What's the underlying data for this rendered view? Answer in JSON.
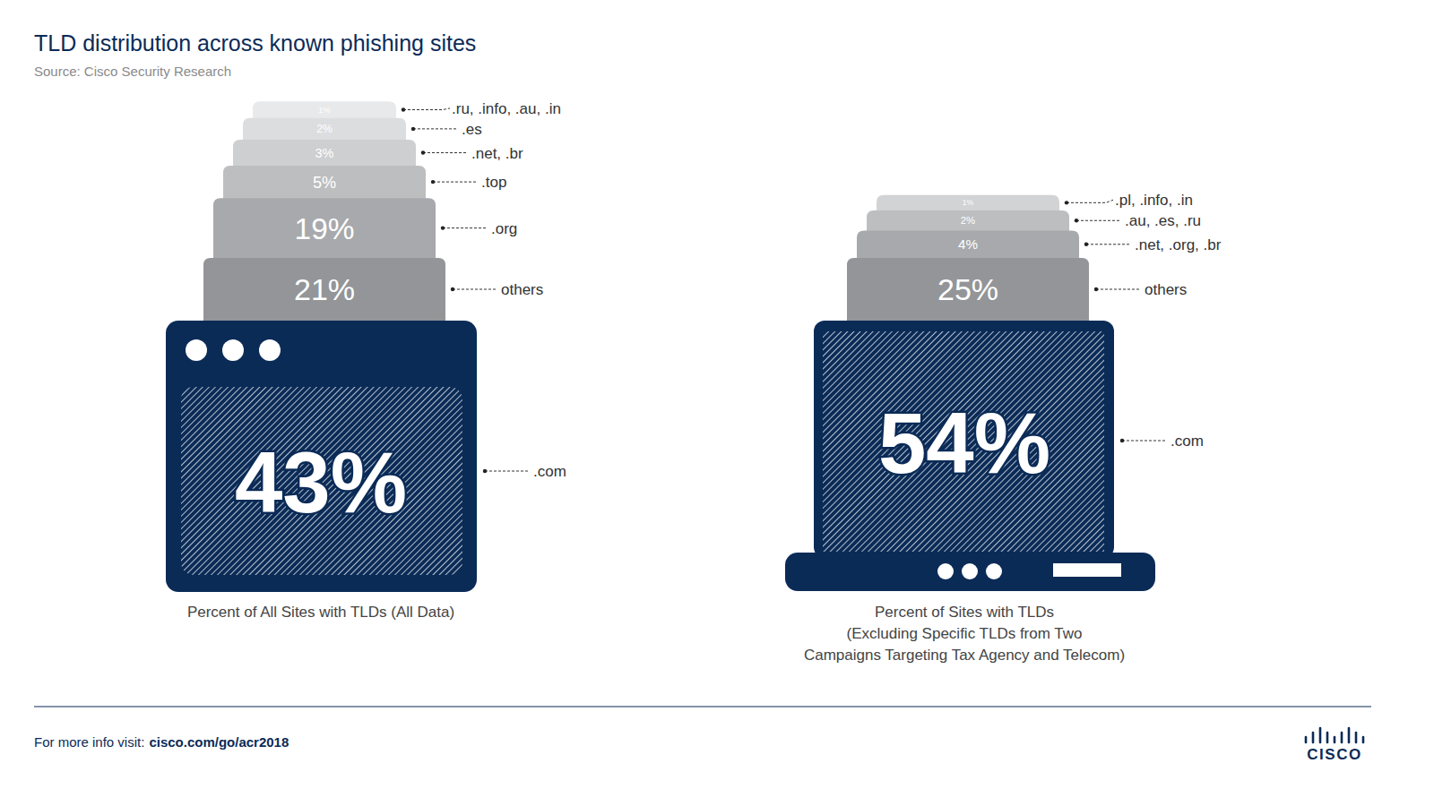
{
  "title": "TLD distribution across known phishing sites",
  "source": "Source: Cisco Security Research",
  "footer": {
    "text": "For more info visit:",
    "link": "cisco.com/go/acr2018"
  },
  "logo": "CISCO",
  "chart_data": [
    {
      "type": "pyramid",
      "title": [
        "Percent of All Sites with TLDs (All Data)"
      ],
      "categories": [
        ".com",
        "others",
        ".org",
        ".top",
        ".net, .br",
        ".es",
        ".ru, .info, .au, .in"
      ],
      "values": [
        43,
        21,
        19,
        5,
        3,
        2,
        1
      ],
      "value_labels": [
        "43%",
        "21%",
        "19%",
        "5%",
        "3%",
        "2%",
        "1%"
      ],
      "colors": [
        "#0b2b57",
        "#939598",
        "#a7a9ac",
        "#bcbec0",
        "#cdcfd1",
        "#dcdddf",
        "#e8e9ea"
      ],
      "data_labels": true
    },
    {
      "type": "pyramid",
      "title": [
        "Percent of Sites with TLDs",
        "(Excluding Specific TLDs from Two",
        "Campaigns Targeting Tax Agency and Telecom)"
      ],
      "categories": [
        ".com",
        "others",
        ".net, .org, .br",
        ".au, .es, .ru",
        ".pl, .info, .in"
      ],
      "values": [
        54,
        25,
        4,
        2,
        1
      ],
      "value_labels": [
        "54%",
        "25%",
        "4%",
        "2%",
        "1%"
      ],
      "colors": [
        "#0b2b57",
        "#939598",
        "#a7a9ac",
        "#bcbec0",
        "#d1d3d4"
      ],
      "data_labels": true
    }
  ]
}
